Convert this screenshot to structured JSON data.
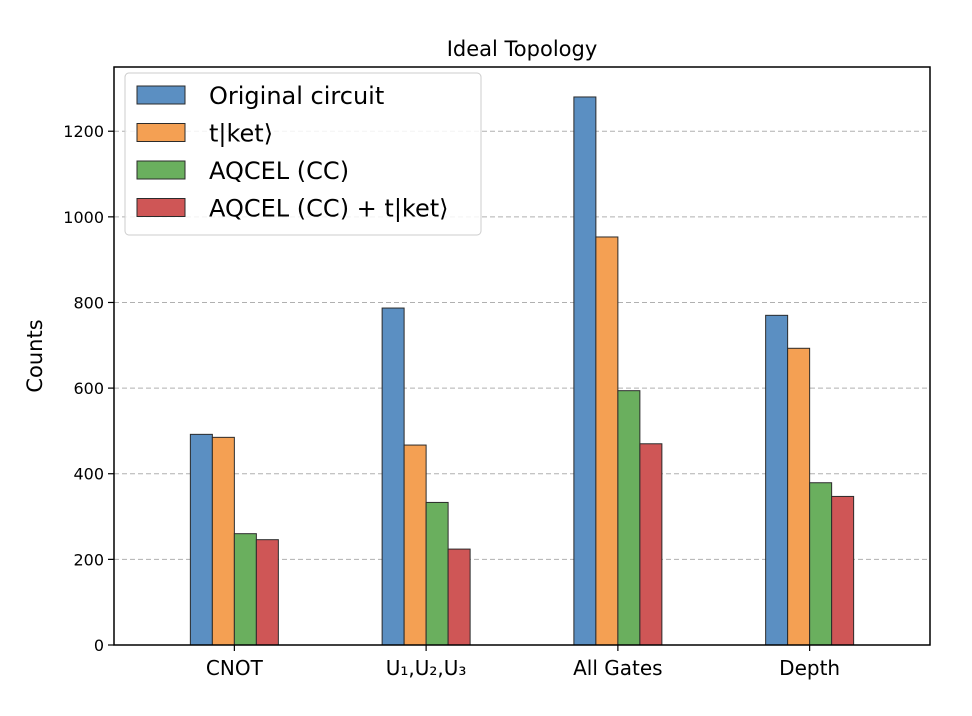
{
  "chart_data": {
    "type": "bar",
    "title": "Ideal Topology",
    "xlabel": "",
    "ylabel": "Counts",
    "categories": [
      {
        "main": "CNOT"
      },
      {
        "main": "U₁,U₂,U₃"
      },
      {
        "main": "All Gates"
      },
      {
        "main": "Depth"
      }
    ],
    "series": [
      {
        "name": "Original circuit",
        "color": "#5b8fc2",
        "values": [
          492,
          787,
          1280,
          770
        ]
      },
      {
        "name": "t|ket⟩",
        "color": "#f4a053",
        "values": [
          485,
          467,
          953,
          693
        ]
      },
      {
        "name": "AQCEL (CC)",
        "color": "#6aaf5e",
        "values": [
          260,
          333,
          594,
          379
        ]
      },
      {
        "name": "AQCEL (CC) + t|ket⟩",
        "color": "#cf5656",
        "values": [
          246,
          224,
          470,
          347
        ]
      }
    ],
    "ylim": [
      0,
      1350
    ],
    "yticks": [
      0,
      200,
      400,
      600,
      800,
      1000,
      1200
    ],
    "grid": "y-dashed",
    "legend_position": "top-left"
  }
}
